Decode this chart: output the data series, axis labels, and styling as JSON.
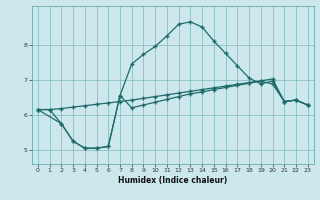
{
  "xlabel": "Humidex (Indice chaleur)",
  "background_color": "#cce8ec",
  "grid_color": "#6aacb0",
  "line_color": "#1e6b6b",
  "xlim": [
    -0.5,
    23.5
  ],
  "ylim": [
    4.6,
    9.1
  ],
  "yticks": [
    5,
    6,
    7,
    8
  ],
  "xticks": [
    0,
    1,
    2,
    3,
    4,
    5,
    6,
    7,
    8,
    9,
    10,
    11,
    12,
    13,
    14,
    15,
    16,
    17,
    18,
    19,
    20,
    21,
    22,
    23
  ],
  "line1_x": [
    0,
    1,
    2,
    3,
    4,
    5,
    6,
    7,
    8,
    9,
    10,
    11,
    12,
    13,
    14,
    15,
    16,
    17,
    18,
    19,
    20,
    21,
    22,
    23
  ],
  "line1_y": [
    6.15,
    6.15,
    5.75,
    5.25,
    5.05,
    5.05,
    5.1,
    6.55,
    6.2,
    6.28,
    6.36,
    6.44,
    6.52,
    6.6,
    6.65,
    6.72,
    6.78,
    6.84,
    6.9,
    6.96,
    6.88,
    6.38,
    6.42,
    6.28
  ],
  "line2_x": [
    0,
    1,
    2,
    3,
    4,
    5,
    6,
    7,
    8,
    9,
    10,
    11,
    12,
    13,
    14,
    15,
    16,
    17,
    18,
    19,
    20,
    21,
    22,
    23
  ],
  "line2_y": [
    6.15,
    6.15,
    6.18,
    6.22,
    6.26,
    6.3,
    6.34,
    6.38,
    6.42,
    6.47,
    6.52,
    6.57,
    6.62,
    6.67,
    6.72,
    6.77,
    6.82,
    6.87,
    6.92,
    6.97,
    7.02,
    6.38,
    6.42,
    6.28
  ],
  "line3_x": [
    0,
    2,
    3,
    4,
    5,
    6,
    7,
    8,
    9,
    10,
    11,
    12,
    13,
    14,
    15,
    16,
    17,
    18,
    19,
    20,
    21,
    22,
    23
  ],
  "line3_y": [
    6.15,
    5.75,
    5.25,
    5.05,
    5.05,
    5.1,
    6.55,
    7.45,
    7.72,
    7.95,
    8.25,
    8.58,
    8.65,
    8.5,
    8.1,
    7.75,
    7.4,
    7.05,
    6.88,
    6.96,
    6.38,
    6.42,
    6.28
  ]
}
